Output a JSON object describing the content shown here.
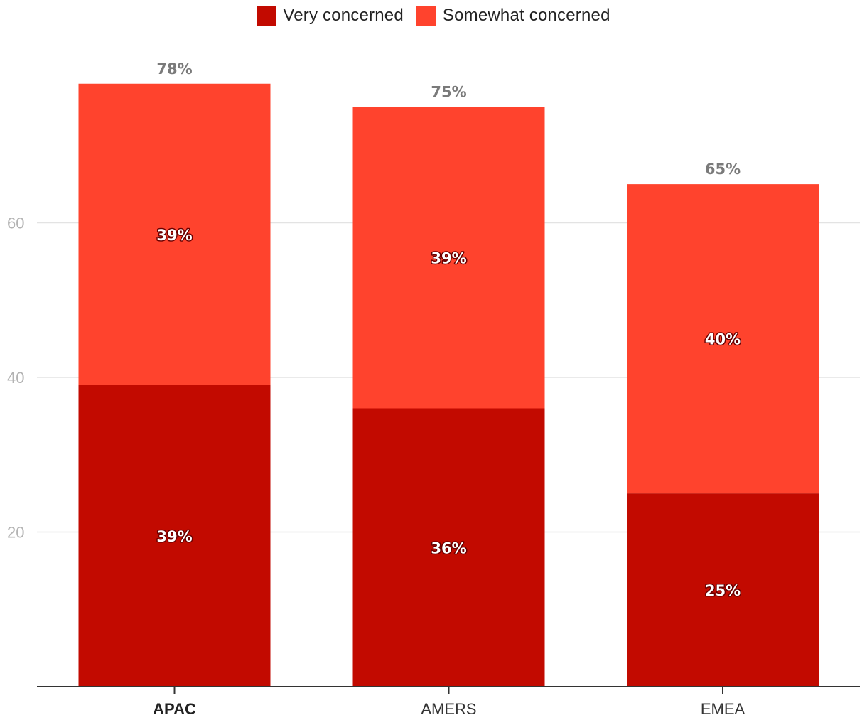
{
  "legend": [
    {
      "label": "Very concerned",
      "color": "#c20a00"
    },
    {
      "label": "Somewhat concerned",
      "color": "#ff432d"
    }
  ],
  "chart_data": {
    "type": "bar",
    "stacked": true,
    "categories": [
      "APAC",
      "AMERS",
      "EMEA"
    ],
    "highlighted_category": "APAC",
    "series": [
      {
        "name": "Very concerned",
        "values": [
          39,
          36,
          25
        ],
        "labels": [
          "39%",
          "36%",
          "25%"
        ],
        "color": "#c20a00"
      },
      {
        "name": "Somewhat concerned",
        "values": [
          39,
          39,
          40
        ],
        "labels": [
          "39%",
          "39%",
          "40%"
        ],
        "color": "#ff432d"
      }
    ],
    "totals": [
      78,
      75,
      65
    ],
    "total_labels": [
      "78%",
      "75%",
      "65%"
    ],
    "y_ticks": [
      20,
      40,
      60
    ],
    "ylim": [
      0,
      80
    ],
    "grid": true,
    "legend_position": "top-center",
    "title": "",
    "xlabel": "",
    "ylabel": ""
  }
}
